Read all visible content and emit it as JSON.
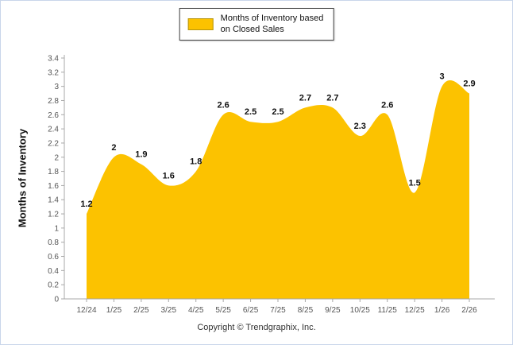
{
  "chart_data": {
    "type": "area",
    "title": "",
    "legend": "Months of Inventory based on Closed Sales",
    "legend_line1": "Months of Inventory based",
    "legend_line2": "on Closed Sales",
    "ylabel": "Months of Inventory",
    "xlabel": "",
    "categories": [
      "12/24",
      "1/25",
      "2/25",
      "3/25",
      "4/25",
      "5/25",
      "6/25",
      "7/25",
      "8/25",
      "9/25",
      "10/25",
      "11/25",
      "12/25",
      "1/26",
      "2/26"
    ],
    "values": [
      1.2,
      2,
      1.9,
      1.6,
      1.8,
      2.6,
      2.5,
      2.5,
      2.7,
      2.7,
      2.3,
      2.6,
      1.5,
      3,
      2.9
    ],
    "value_labels": [
      "1.2",
      "2",
      "1.9",
      "1.6",
      "1.8",
      "2.6",
      "2.5",
      "2.5",
      "2.7",
      "2.7",
      "2.3",
      "2.6",
      "1.5",
      "3",
      "2.9"
    ],
    "ylim": [
      0,
      3.4
    ],
    "ytick_step": 0.2,
    "grid": false,
    "legend_position": "top-center",
    "fill_color": "#FCC200",
    "axis_color": "#a8a8a8",
    "tick_label_color": "#555555",
    "data_label_color": "#111111",
    "footer": "Copyright © Trendgraphix, Inc."
  }
}
